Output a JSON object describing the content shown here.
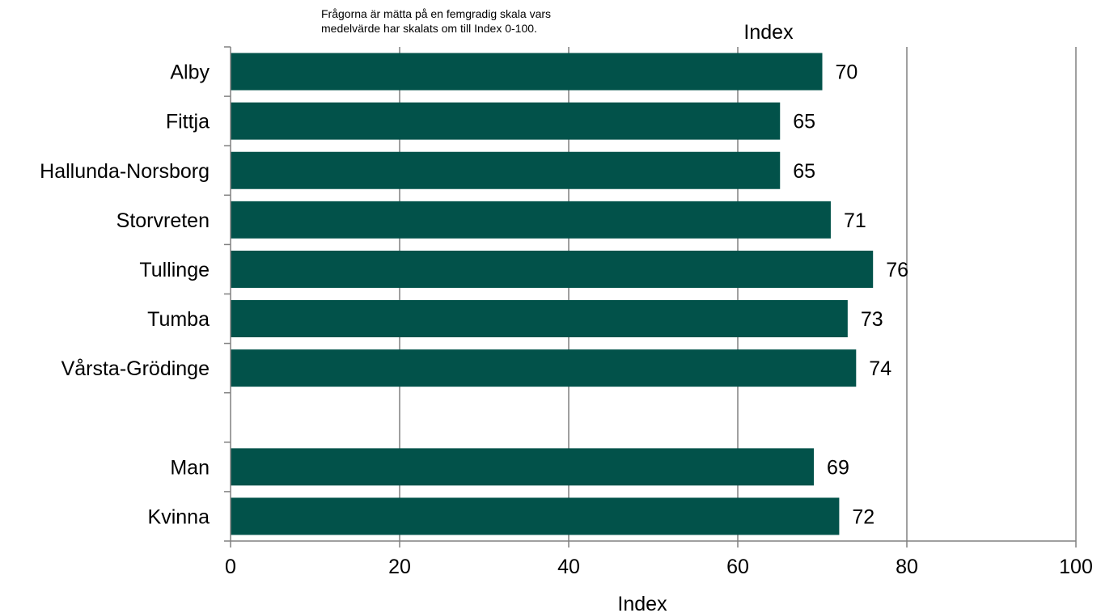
{
  "note": {
    "line1": "Frågorna är mätta på en femgradig skala vars",
    "line2": "medelvärde har skalats om till Index 0-100."
  },
  "colors": {
    "bar": "#02524a",
    "grid": "#808080",
    "axis": "#808080"
  },
  "chart_data": {
    "type": "bar",
    "orientation": "horizontal",
    "top_label": "Index",
    "xlabel": "Index",
    "xlim": [
      0,
      100
    ],
    "xticks": [
      0,
      20,
      40,
      60,
      80,
      100
    ],
    "grid": true,
    "legend": "none",
    "categories": [
      "Alby",
      "Fittja",
      "Hallunda-Norsborg",
      "Storvreten",
      "Tullinge",
      "Tumba",
      "Vårsta-Grödinge",
      "",
      "Man",
      "Kvinna"
    ],
    "values": [
      70,
      65,
      65,
      71,
      76,
      73,
      74,
      null,
      69,
      72
    ],
    "data_labels": [
      "70",
      "65",
      "65",
      "71",
      "76",
      "73",
      "74",
      "",
      "69",
      "72"
    ]
  }
}
